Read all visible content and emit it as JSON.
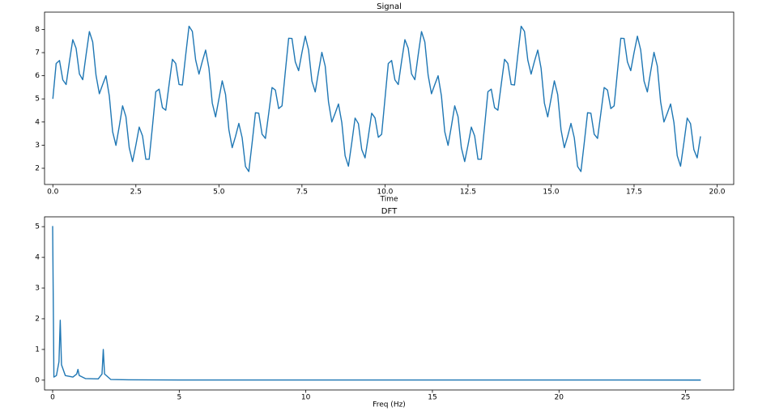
{
  "chart_data": [
    {
      "type": "line",
      "title": "Signal",
      "xlabel": "Time",
      "color": "#1f77b4",
      "x": [
        0,
        0.1,
        0.2,
        0.3,
        0.4,
        0.5,
        0.6,
        0.7,
        0.8,
        0.9,
        1,
        1.1,
        1.2,
        1.3,
        1.4,
        1.5,
        1.6,
        1.7,
        1.8,
        1.9,
        2,
        2.1,
        2.2,
        2.3,
        2.4,
        2.5,
        2.6,
        2.7,
        2.8,
        2.9,
        3,
        3.1,
        3.2,
        3.3,
        3.4,
        3.5,
        3.6,
        3.7,
        3.8,
        3.9,
        4,
        4.1,
        4.2,
        4.3,
        4.4,
        4.5,
        4.6,
        4.7,
        4.8,
        4.9,
        5,
        5.1,
        5.2,
        5.3,
        5.4,
        5.5,
        5.6,
        5.7,
        5.8,
        5.9,
        6,
        6.1,
        6.2,
        6.3,
        6.4,
        6.5,
        6.6,
        6.7,
        6.8,
        6.9,
        7,
        7.1,
        7.2,
        7.3,
        7.4,
        7.5,
        7.6,
        7.7,
        7.8,
        7.9,
        8,
        8.1,
        8.2,
        8.3,
        8.4,
        8.5,
        8.6,
        8.7,
        8.8,
        8.9,
        9,
        9.1,
        9.2,
        9.3,
        9.4,
        9.5,
        9.6,
        9.7,
        9.8,
        9.9,
        10,
        10.1,
        10.2,
        10.3,
        10.4,
        10.5,
        10.6,
        10.7,
        10.8,
        10.9,
        11,
        11.1,
        11.2,
        11.3,
        11.4,
        11.5,
        11.6,
        11.7,
        11.8,
        11.9,
        12,
        12.1,
        12.2,
        12.3,
        12.4,
        12.5,
        12.6,
        12.7,
        12.8,
        12.9,
        13,
        13.1,
        13.2,
        13.3,
        13.4,
        13.5,
        13.6,
        13.7,
        13.8,
        13.9,
        14,
        14.1,
        14.2,
        14.3,
        14.4,
        14.5,
        14.6,
        14.7,
        14.8,
        14.9,
        15,
        15.1,
        15.2,
        15.3,
        15.4,
        15.5,
        15.6,
        15.7,
        15.8,
        15.9,
        16,
        16.1,
        16.2,
        16.3,
        16.4,
        16.5,
        16.6,
        16.7,
        16.8,
        16.9,
        17,
        17.1,
        17.2,
        17.3,
        17.4,
        17.5,
        17.6,
        17.7,
        17.8,
        17.9,
        18,
        18.1,
        18.2,
        18.3,
        18.4,
        18.5,
        18.6,
        18.7,
        18.8,
        18.9,
        19,
        19.1,
        19.2,
        19.3,
        19.4,
        19.5
      ],
      "values": [
        5,
        6.53,
        6.66,
        5.82,
        5.62,
        6.62,
        7.56,
        7.19,
        6.08,
        5.83,
        6.9,
        7.91,
        7.46,
        6.02,
        5.22,
        5.62,
        6,
        5.13,
        3.58,
        2.99,
        3.82,
        4.7,
        4.23,
        2.89,
        2.29,
        3,
        3.78,
        3.4,
        2.39,
        2.39,
        3.82,
        5.31,
        5.42,
        4.62,
        4.51,
        5.62,
        6.71,
        6.53,
        5.62,
        5.6,
        6.9,
        8.14,
        7.92,
        6.68,
        6.07,
        6.62,
        7.11,
        6.33,
        4.82,
        4.22,
        5,
        5.78,
        5.19,
        3.67,
        2.89,
        3.38,
        3.94,
        3.32,
        2.08,
        1.86,
        3.1,
        4.4,
        4.38,
        3.47,
        3.29,
        4.38,
        5.49,
        5.38,
        4.58,
        4.7,
        6.18,
        7.62,
        7.61,
        6.6,
        6.22,
        7,
        7.71,
        7.11,
        5.77,
        5.3,
        6.18,
        7.01,
        6.42,
        4.87,
        4,
        4.38,
        4.78,
        3.98,
        2.54,
        2.09,
        3.1,
        4.17,
        3.93,
        2.81,
        2.45,
        3.38,
        4.38,
        4.18,
        3.34,
        3.47,
        5,
        6.53,
        6.66,
        5.82,
        5.62,
        6.62,
        7.56,
        7.19,
        6.08,
        5.83,
        6.9,
        7.91,
        7.46,
        6.02,
        5.22,
        5.62,
        6,
        5.13,
        3.58,
        2.99,
        3.82,
        4.7,
        4.23,
        2.89,
        2.29,
        3,
        3.78,
        3.4,
        2.39,
        2.39,
        3.82,
        5.31,
        5.42,
        4.62,
        4.51,
        5.62,
        6.71,
        6.53,
        5.62,
        5.6,
        6.9,
        8.14,
        7.92,
        6.68,
        6.07,
        6.62,
        7.11,
        6.33,
        4.82,
        4.22,
        5,
        5.78,
        5.19,
        3.67,
        2.89,
        3.38,
        3.94,
        3.32,
        2.08,
        1.86,
        3.1,
        4.4,
        4.38,
        3.47,
        3.29,
        4.38,
        5.49,
        5.38,
        4.58,
        4.7,
        6.18,
        7.62,
        7.61,
        6.6,
        6.22,
        7,
        7.71,
        7.11,
        5.77,
        5.3,
        6.18,
        7.01,
        6.42,
        4.87,
        4,
        4.38,
        4.78,
        3.98,
        2.54,
        2.09,
        3.1,
        4.17,
        3.93,
        2.81,
        2.45,
        3.38
      ],
      "xlim": [
        -0.25,
        20.5
      ],
      "ylim": [
        1.3,
        8.75
      ],
      "xticks": [
        {
          "value": 0,
          "label": "0.0"
        },
        {
          "value": 2.5,
          "label": "2.5"
        },
        {
          "value": 5,
          "label": "5.0"
        },
        {
          "value": 7.5,
          "label": "7.5"
        },
        {
          "value": 10,
          "label": "10.0"
        },
        {
          "value": 12.5,
          "label": "12.5"
        },
        {
          "value": 15,
          "label": "15.0"
        },
        {
          "value": 17.5,
          "label": "17.5"
        },
        {
          "value": 20,
          "label": "20.0"
        }
      ],
      "yticks": [
        2,
        3,
        4,
        5,
        6,
        7,
        8
      ]
    },
    {
      "type": "line",
      "title": "DFT",
      "xlabel": "Freq (Hz)",
      "color": "#1f77b4",
      "x": [
        0,
        0.05,
        0.15,
        0.25,
        0.3,
        0.35,
        0.5,
        0.8,
        0.95,
        1,
        1.05,
        1.3,
        1.8,
        1.95,
        2,
        2.05,
        2.3,
        3,
        5,
        25.6
      ],
      "values": [
        5.02,
        0.1,
        0.15,
        0.6,
        1.95,
        0.5,
        0.15,
        0.1,
        0.2,
        0.35,
        0.15,
        0.05,
        0.04,
        0.2,
        1,
        0.2,
        0.02,
        0.01,
        0.005,
        0.003
      ],
      "xlim": [
        -0.32,
        26.9
      ],
      "ylim": [
        -0.32,
        5.32
      ],
      "xticks": [
        0,
        5,
        10,
        15,
        20,
        25
      ],
      "yticks": [
        0,
        1,
        2,
        3,
        4,
        5
      ]
    }
  ]
}
